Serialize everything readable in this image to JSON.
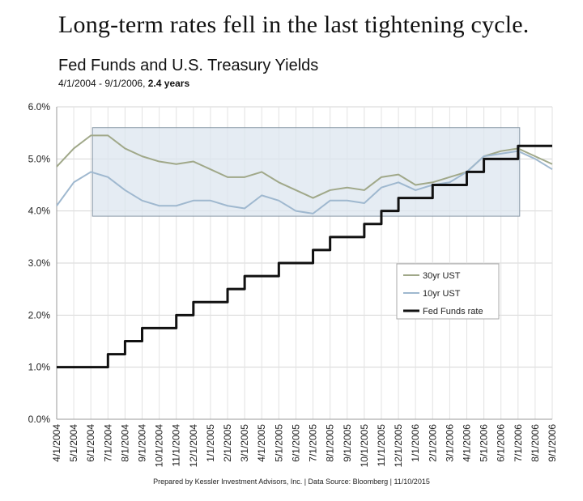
{
  "headline": "Long-term rates fell in the last tightening cycle.",
  "chart_data": {
    "type": "line",
    "title": "Fed Funds and U.S. Treasury Yields",
    "subtitle_prefix": "4/1/2004 - 9/1/2006, ",
    "subtitle_bold": "2.4 years",
    "ylim": [
      0,
      6
    ],
    "yticks": [
      "0.0%",
      "1.0%",
      "2.0%",
      "3.0%",
      "4.0%",
      "5.0%",
      "6.0%"
    ],
    "xticks": [
      "4/1/2004",
      "5/1/2004",
      "6/1/2004",
      "7/1/2004",
      "8/1/2004",
      "9/1/2004",
      "10/1/2004",
      "11/1/2004",
      "12/1/2004",
      "1/1/2005",
      "2/1/2005",
      "3/1/2005",
      "4/1/2005",
      "5/1/2005",
      "6/1/2005",
      "7/1/2005",
      "8/1/2005",
      "9/1/2005",
      "10/1/2005",
      "11/1/2005",
      "12/1/2005",
      "1/1/2006",
      "2/1/2006",
      "3/1/2006",
      "4/1/2006",
      "5/1/2006",
      "6/1/2006",
      "7/1/2006",
      "8/1/2006",
      "9/1/2006"
    ],
    "grid": true,
    "legend_position": "right",
    "highlight_box": {
      "x_start": "6/1/2004",
      "x_end": "7/1/2006",
      "y_range": [
        3.9,
        5.6
      ],
      "color": "#dce6ef"
    },
    "series": [
      {
        "name": "30yr UST",
        "color": "#a0a889",
        "values": [
          4.85,
          5.2,
          5.45,
          5.45,
          5.2,
          5.05,
          4.95,
          4.9,
          4.95,
          4.8,
          4.65,
          4.65,
          4.75,
          4.55,
          4.4,
          4.25,
          4.4,
          4.45,
          4.4,
          4.65,
          4.7,
          4.5,
          4.55,
          4.65,
          4.75,
          5.05,
          5.15,
          5.2,
          5.05,
          4.9
        ]
      },
      {
        "name": "10yr UST",
        "color": "#9fb8cf",
        "values": [
          4.1,
          4.55,
          4.75,
          4.65,
          4.4,
          4.2,
          4.1,
          4.1,
          4.2,
          4.2,
          4.1,
          4.05,
          4.3,
          4.2,
          4.0,
          3.95,
          4.2,
          4.2,
          4.15,
          4.45,
          4.55,
          4.4,
          4.5,
          4.55,
          4.75,
          5.05,
          5.1,
          5.15,
          5.0,
          4.8
        ]
      },
      {
        "name": "Fed Funds rate",
        "color": "#111111",
        "values": [
          1.0,
          1.0,
          1.0,
          1.25,
          1.5,
          1.75,
          1.75,
          2.0,
          2.25,
          2.25,
          2.5,
          2.75,
          2.75,
          3.0,
          3.0,
          3.25,
          3.5,
          3.5,
          3.75,
          4.0,
          4.25,
          4.25,
          4.5,
          4.5,
          4.75,
          5.0,
          5.0,
          5.25,
          5.25,
          5.25
        ]
      }
    ]
  },
  "footer": "Prepared by Kessler Investment Advisors, Inc. | Data Source: Bloomberg | 11/10/2015"
}
